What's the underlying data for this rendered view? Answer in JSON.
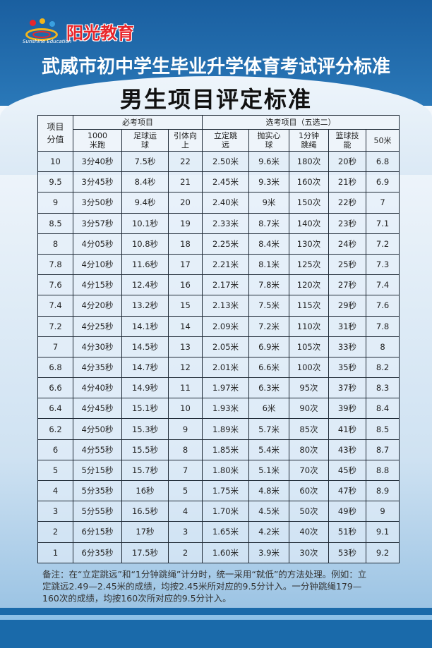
{
  "logo": {
    "en": "Sunshine Education",
    "cn": "阳光教育"
  },
  "title": "武威市初中学生毕业升学体育考试评分标准",
  "subtitle": "男生项目评定标准",
  "table": {
    "score_header": "项目分值",
    "required_header": "必考项目",
    "optional_header": "选考项目（五选二）",
    "columns": [
      "1000米跑",
      "足球运球",
      "引体向上",
      "立定跳远",
      "抛实心球",
      "1分钟跳绳",
      "篮球技能",
      "50米"
    ],
    "rows": [
      [
        "10",
        "3分40秒",
        "7.5秒",
        "22",
        "2.50米",
        "9.6米",
        "180次",
        "20秒",
        "6.8"
      ],
      [
        "9.5",
        "3分45秒",
        "8.4秒",
        "21",
        "2.45米",
        "9.3米",
        "160次",
        "21秒",
        "6.9"
      ],
      [
        "9",
        "3分50秒",
        "9.4秒",
        "20",
        "2.40米",
        "9米",
        "150次",
        "22秒",
        "7"
      ],
      [
        "8.5",
        "3分57秒",
        "10.1秒",
        "19",
        "2.33米",
        "8.7米",
        "140次",
        "23秒",
        "7.1"
      ],
      [
        "8",
        "4分05秒",
        "10.8秒",
        "18",
        "2.25米",
        "8.4米",
        "130次",
        "24秒",
        "7.2"
      ],
      [
        "7.8",
        "4分10秒",
        "11.6秒",
        "17",
        "2.21米",
        "8.1米",
        "125次",
        "25秒",
        "7.3"
      ],
      [
        "7.6",
        "4分15秒",
        "12.4秒",
        "16",
        "2.17米",
        "7.8米",
        "120次",
        "27秒",
        "7.4"
      ],
      [
        "7.4",
        "4分20秒",
        "13.2秒",
        "15",
        "2.13米",
        "7.5米",
        "115次",
        "29秒",
        "7.6"
      ],
      [
        "7.2",
        "4分25秒",
        "14.1秒",
        "14",
        "2.09米",
        "7.2米",
        "110次",
        "31秒",
        "7.8"
      ],
      [
        "7",
        "4分30秒",
        "14.5秒",
        "13",
        "2.05米",
        "6.9米",
        "105次",
        "33秒",
        "8"
      ],
      [
        "6.8",
        "4分35秒",
        "14.7秒",
        "12",
        "2.01米",
        "6.6米",
        "100次",
        "35秒",
        "8.2"
      ],
      [
        "6.6",
        "4分40秒",
        "14.9秒",
        "11",
        "1.97米",
        "6.3米",
        "95次",
        "37秒",
        "8.3"
      ],
      [
        "6.4",
        "4分45秒",
        "15.1秒",
        "10",
        "1.93米",
        "6米",
        "90次",
        "39秒",
        "8.4"
      ],
      [
        "6.2",
        "4分50秒",
        "15.3秒",
        "9",
        "1.89米",
        "5.7米",
        "85次",
        "41秒",
        "8.5"
      ],
      [
        "6",
        "4分55秒",
        "15.5秒",
        "8",
        "1.85米",
        "5.4米",
        "80次",
        "43秒",
        "8.7"
      ],
      [
        "5",
        "5分15秒",
        "15.7秒",
        "7",
        "1.80米",
        "5.1米",
        "70次",
        "45秒",
        "8.8"
      ],
      [
        "4",
        "5分35秒",
        "16秒",
        "5",
        "1.75米",
        "4.8米",
        "60次",
        "47秒",
        "8.9"
      ],
      [
        "3",
        "5分55秒",
        "16.5秒",
        "4",
        "1.70米",
        "4.5米",
        "50次",
        "49秒",
        "9"
      ],
      [
        "2",
        "6分15秒",
        "17秒",
        "3",
        "1.65米",
        "4.2米",
        "40次",
        "51秒",
        "9.1"
      ],
      [
        "1",
        "6分35秒",
        "17.5秒",
        "2",
        "1.60米",
        "3.9米",
        "30次",
        "53秒",
        "9.2"
      ]
    ]
  },
  "note": "备注：在“立定跳远”和“1分钟跳绳”计分时，统一采用“就低”的方法处理。例如：立定跳远2.49—2.45米的成绩，均按2.45米所对应的9.5分计入。一分钟跳绳179—160次的成绩，均按160次所对应的9.5分计入。",
  "colors": {
    "brand_blue": "#1a6aaa",
    "logo_red": "#e8262b"
  }
}
